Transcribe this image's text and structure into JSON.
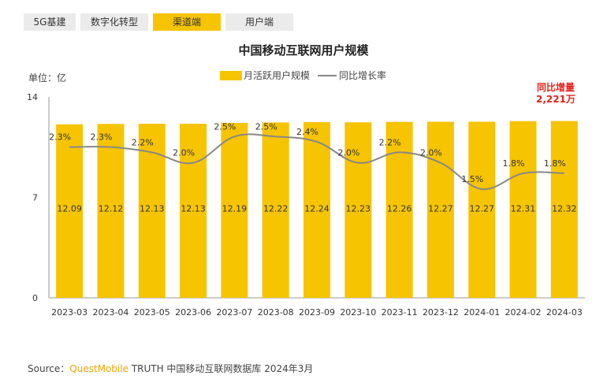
{
  "tabs": [
    {
      "label": "5G基建",
      "active": false
    },
    {
      "label": "数字化转型",
      "active": false
    },
    {
      "label": "渠道端",
      "active": true
    },
    {
      "label": "用户端",
      "active": false
    }
  ],
  "colors": {
    "bar": "#f6c400",
    "line": "#888888",
    "highlight": "#e8221b",
    "tab_active": "#f6c400"
  },
  "source": {
    "prefix": "Source：",
    "brand": "QuestMobile",
    "rest": "TRUTH 中国移动互联网数据库 2024年3月"
  },
  "callout": {
    "line1": "同比增量",
    "line2": "2,221万"
  },
  "chart_data": {
    "type": "bar",
    "title": "中国移动互联网用户规模",
    "unit_label": "单位：亿",
    "categories": [
      "2023-03",
      "2023-04",
      "2023-05",
      "2023-06",
      "2023-07",
      "2023-08",
      "2023-09",
      "2023-10",
      "2023-11",
      "2023-12",
      "2024-01",
      "2024-02",
      "2024-03"
    ],
    "series": [
      {
        "name": "月活跃用户规模",
        "kind": "bar",
        "values": [
          12.09,
          12.12,
          12.13,
          12.13,
          12.19,
          12.22,
          12.24,
          12.23,
          12.26,
          12.27,
          12.27,
          12.31,
          12.32
        ],
        "labels": [
          "12.09",
          "12.12",
          "12.13",
          "12.13",
          "12.19",
          "12.22",
          "12.24",
          "12.23",
          "12.26",
          "12.27",
          "12.27",
          "12.31",
          "12.32"
        ]
      },
      {
        "name": "同比增长率",
        "kind": "line",
        "values": [
          2.3,
          2.3,
          2.2,
          2.0,
          2.5,
          2.5,
          2.4,
          2.0,
          2.2,
          2.0,
          1.5,
          1.8,
          1.8
        ],
        "labels": [
          "2.3%",
          "2.3%",
          "2.2%",
          "2.0%",
          "2.5%",
          "2.5%",
          "2.4%",
          "2.0%",
          "2.2%",
          "2.0%",
          "1.5%",
          "1.8%",
          "1.8%"
        ]
      }
    ],
    "ylim": [
      0,
      14
    ],
    "yticks": [
      "0",
      "7",
      "14"
    ],
    "legend_position": "top-center"
  }
}
